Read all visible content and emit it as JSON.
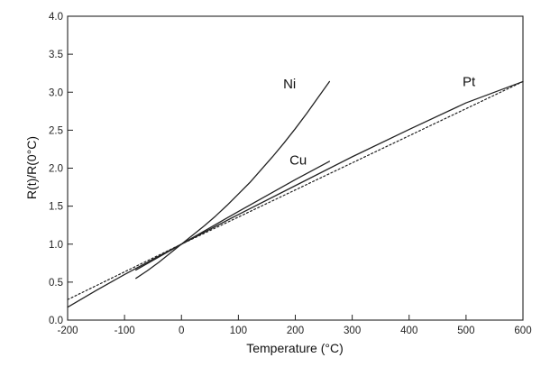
{
  "chart_data": {
    "type": "line",
    "title": "",
    "xlabel": "Temperature (°C)",
    "ylabel": "R(t)/R(0°C)",
    "xlim": [
      -200,
      600
    ],
    "ylim": [
      0.0,
      4.0
    ],
    "xticks": [
      -200,
      -100,
      0,
      100,
      200,
      300,
      400,
      500,
      600
    ],
    "yticks": [
      0.0,
      0.5,
      1.0,
      1.5,
      2.0,
      2.5,
      3.0,
      3.5,
      4.0
    ],
    "xtick_labels": [
      "-200",
      "-100",
      "0",
      "100",
      "200",
      "300",
      "400",
      "500",
      "600"
    ],
    "ytick_labels": [
      "0.0",
      "0.5",
      "1.0",
      "1.5",
      "2.0",
      "2.5",
      "3.0",
      "3.5",
      "4.0"
    ],
    "grid": false,
    "series": [
      {
        "name": "Ni",
        "color": "#222222",
        "style": "solid",
        "x": [
          -80,
          -60,
          -40,
          -20,
          0,
          20,
          40,
          60,
          80,
          100,
          120,
          140,
          160,
          180,
          200,
          220,
          240,
          260
        ],
        "y": [
          0.55,
          0.65,
          0.76,
          0.88,
          1.0,
          1.12,
          1.24,
          1.37,
          1.51,
          1.66,
          1.81,
          1.98,
          2.15,
          2.33,
          2.52,
          2.72,
          2.93,
          3.14
        ]
      },
      {
        "name": "Cu",
        "color": "#222222",
        "style": "solid",
        "x": [
          -80,
          0,
          100,
          200,
          260
        ],
        "y": [
          0.66,
          1.0,
          1.43,
          1.85,
          2.09
        ]
      },
      {
        "name": "Pt",
        "color": "#222222",
        "style": "solid",
        "x": [
          -200,
          -150,
          -100,
          -50,
          0,
          100,
          200,
          300,
          400,
          500,
          600
        ],
        "y": [
          0.17,
          0.39,
          0.6,
          0.8,
          1.0,
          1.39,
          1.77,
          2.15,
          2.51,
          2.86,
          3.14
        ]
      },
      {
        "name": "",
        "color": "#222222",
        "style": "dotted",
        "x": [
          -200,
          0,
          600
        ],
        "y": [
          0.27,
          1.0,
          3.14
        ]
      }
    ],
    "series_labels": [
      {
        "text": "Ni",
        "x": 190,
        "y": 3.05
      },
      {
        "text": "Cu",
        "x": 205,
        "y": 2.05
      },
      {
        "text": "Pt",
        "x": 505,
        "y": 3.08
      }
    ]
  }
}
